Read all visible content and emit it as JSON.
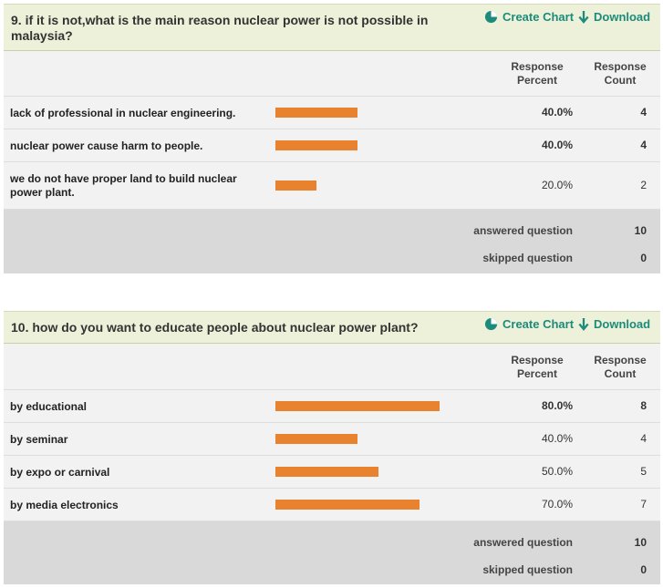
{
  "actions": {
    "create_chart": "Create Chart",
    "download": "Download"
  },
  "headers": {
    "percent": "Response Percent",
    "count": "Response Count"
  },
  "colors": {
    "bar": "#e8822f",
    "accent": "#1c8b7c",
    "header_bg": "#edf1d9"
  },
  "q9": {
    "title": "9. if it is not,what is the main reason nuclear power is not possible in malaysia?",
    "rows": [
      {
        "label": "lack of professional in nuclear engineering.",
        "percent": "40.0%",
        "count": "4",
        "fraction": 0.4,
        "bold": true
      },
      {
        "label": "nuclear power cause harm to people.",
        "percent": "40.0%",
        "count": "4",
        "fraction": 0.4,
        "bold": true
      },
      {
        "label": "we do not have proper land to build nuclear power plant.",
        "percent": "20.0%",
        "count": "2",
        "fraction": 0.2,
        "bold": false
      }
    ],
    "answered_label": "answered question",
    "answered": "10",
    "skipped_label": "skipped question",
    "skipped": "0"
  },
  "q10": {
    "title": "10. how do you want to educate people about nuclear power plant?",
    "rows": [
      {
        "label": "by educational",
        "percent": "80.0%",
        "count": "8",
        "fraction": 0.8,
        "bold": true
      },
      {
        "label": "by seminar",
        "percent": "40.0%",
        "count": "4",
        "fraction": 0.4,
        "bold": false
      },
      {
        "label": "by expo or carnival",
        "percent": "50.0%",
        "count": "5",
        "fraction": 0.5,
        "bold": false
      },
      {
        "label": "by media electronics",
        "percent": "70.0%",
        "count": "7",
        "fraction": 0.7,
        "bold": false
      }
    ],
    "answered_label": "answered question",
    "answered": "10",
    "skipped_label": "skipped question",
    "skipped": "0"
  }
}
